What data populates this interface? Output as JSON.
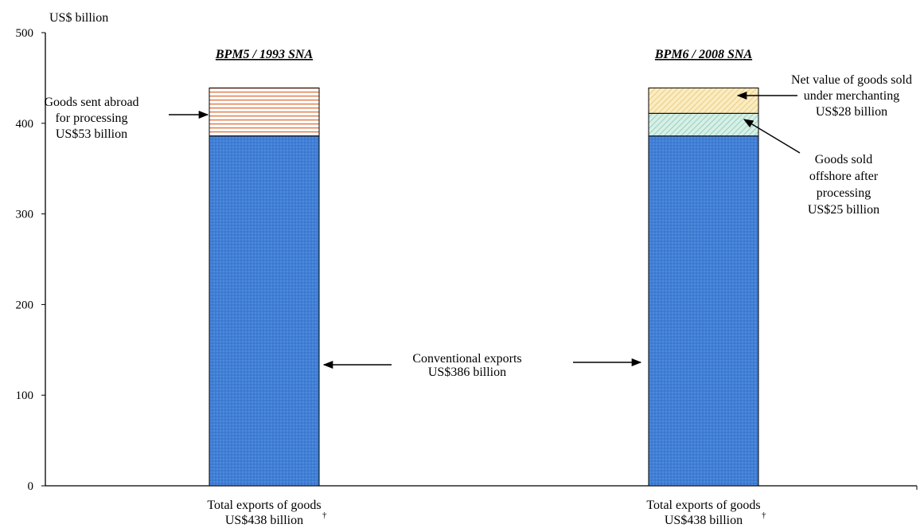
{
  "chart_data": {
    "type": "bar",
    "stacked": true,
    "ylabel": "US$ billion",
    "ylim": [
      0,
      500
    ],
    "yticks": [
      0,
      100,
      200,
      300,
      400,
      500
    ],
    "grid": false,
    "categories": [
      "Total exports of goods",
      "Total exports of goods"
    ],
    "category_sublabels": [
      "US$438 billion",
      "US$438 billion"
    ],
    "category_note_mark": "†",
    "panel_titles": [
      "BPM5 / 1993 SNA",
      "BPM6 / 2008 SNA"
    ],
    "series": [
      {
        "name": "Conventional exports",
        "values": [
          386,
          386
        ],
        "color": "#3f7fd6",
        "pattern": "dots"
      },
      {
        "name": "Goods sent abroad for processing",
        "values": [
          53,
          0
        ],
        "color": "#e0703a",
        "pattern": "horizontal-stripes"
      },
      {
        "name": "Goods sold offshore after processing",
        "values": [
          0,
          25
        ],
        "color": "#bfe6d9",
        "pattern": "diagonal-hatch"
      },
      {
        "name": "Net value of goods sold under merchanting",
        "values": [
          0,
          28
        ],
        "color": "#f7dfa0",
        "pattern": "diagonal-hatch"
      }
    ],
    "annotations": [
      {
        "id": "processing",
        "lines": [
          "Goods sent abroad",
          "for processing",
          "US$53 billion"
        ]
      },
      {
        "id": "merchanting",
        "lines": [
          "Net value of goods sold",
          "under merchanting",
          "US$28 billion"
        ]
      },
      {
        "id": "offshore",
        "lines": [
          "Goods sold",
          "offshore after",
          "processing",
          "US$25 billion"
        ]
      },
      {
        "id": "conventional",
        "lines": [
          "Conventional exports",
          "US$386 billion"
        ]
      }
    ]
  }
}
